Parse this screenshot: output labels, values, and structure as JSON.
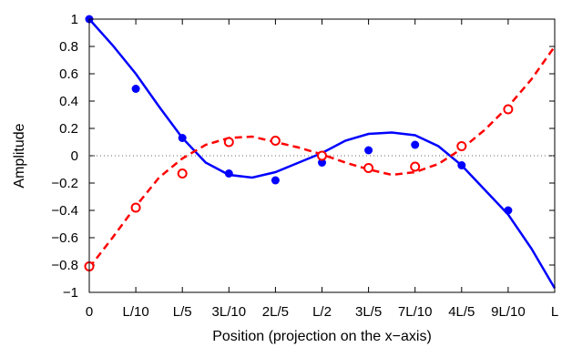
{
  "chart_data": {
    "type": "line",
    "xlabel": "Position (projection on the x−axis)",
    "ylabel": "Amplitude",
    "xlim": [
      0,
      1
    ],
    "ylim": [
      -1,
      1
    ],
    "x_ticks": [
      {
        "value": 0.0,
        "label": "0"
      },
      {
        "value": 0.1,
        "label": "L/10"
      },
      {
        "value": 0.2,
        "label": "L/5"
      },
      {
        "value": 0.3,
        "label": "3L/10"
      },
      {
        "value": 0.4,
        "label": "2L/5"
      },
      {
        "value": 0.5,
        "label": "L/2"
      },
      {
        "value": 0.6,
        "label": "3L/5"
      },
      {
        "value": 0.7,
        "label": "7L/10"
      },
      {
        "value": 0.8,
        "label": "4L/5"
      },
      {
        "value": 0.9,
        "label": "9L/10"
      },
      {
        "value": 1.0,
        "label": "L"
      }
    ],
    "y_ticks": [
      {
        "value": 1.0,
        "label": "1"
      },
      {
        "value": 0.8,
        "label": "0.8"
      },
      {
        "value": 0.6,
        "label": "0.6"
      },
      {
        "value": 0.4,
        "label": "0.4"
      },
      {
        "value": 0.2,
        "label": "0.2"
      },
      {
        "value": 0.0,
        "label": "0"
      },
      {
        "value": -0.2,
        "label": "−0.2"
      },
      {
        "value": -0.4,
        "label": "−0.4"
      },
      {
        "value": -0.6,
        "label": "−0.6"
      },
      {
        "value": -0.8,
        "label": "−0.8"
      },
      {
        "value": -1.0,
        "label": "−1"
      }
    ],
    "zero_line": true,
    "grid": false,
    "legend": "none",
    "series": [
      {
        "style": "solid",
        "color": "#0000ff",
        "curve": [
          [
            0.0,
            1.0
          ],
          [
            0.05,
            0.81
          ],
          [
            0.1,
            0.6
          ],
          [
            0.15,
            0.36
          ],
          [
            0.2,
            0.13
          ],
          [
            0.25,
            -0.05
          ],
          [
            0.3,
            -0.14
          ],
          [
            0.35,
            -0.16
          ],
          [
            0.4,
            -0.12
          ],
          [
            0.45,
            -0.05
          ],
          [
            0.5,
            0.02
          ],
          [
            0.55,
            0.11
          ],
          [
            0.6,
            0.16
          ],
          [
            0.65,
            0.17
          ],
          [
            0.7,
            0.15
          ],
          [
            0.75,
            0.07
          ],
          [
            0.8,
            -0.07
          ],
          [
            0.85,
            -0.25
          ],
          [
            0.9,
            -0.43
          ],
          [
            0.95,
            -0.68
          ],
          [
            1.0,
            -0.97
          ]
        ],
        "points": [
          [
            0.0,
            1.0
          ],
          [
            0.1,
            0.49
          ],
          [
            0.2,
            0.13
          ],
          [
            0.3,
            -0.13
          ],
          [
            0.4,
            -0.18
          ],
          [
            0.5,
            -0.05
          ],
          [
            0.6,
            0.04
          ],
          [
            0.7,
            0.08
          ],
          [
            0.8,
            -0.07
          ],
          [
            0.9,
            -0.4
          ]
        ],
        "marker": "filled-circle"
      },
      {
        "style": "dashed",
        "color": "#ff0000",
        "curve": [
          [
            0.0,
            -0.82
          ],
          [
            0.05,
            -0.6
          ],
          [
            0.1,
            -0.37
          ],
          [
            0.15,
            -0.16
          ],
          [
            0.2,
            -0.02
          ],
          [
            0.25,
            0.08
          ],
          [
            0.3,
            0.13
          ],
          [
            0.35,
            0.14
          ],
          [
            0.4,
            0.1
          ],
          [
            0.45,
            0.06
          ],
          [
            0.5,
            0.01
          ],
          [
            0.55,
            -0.05
          ],
          [
            0.6,
            -0.1
          ],
          [
            0.65,
            -0.14
          ],
          [
            0.7,
            -0.12
          ],
          [
            0.75,
            -0.06
          ],
          [
            0.8,
            0.05
          ],
          [
            0.85,
            0.19
          ],
          [
            0.9,
            0.36
          ],
          [
            0.95,
            0.56
          ],
          [
            1.0,
            0.8
          ]
        ],
        "points": [
          [
            0.0,
            -0.81
          ],
          [
            0.1,
            -0.38
          ],
          [
            0.2,
            -0.13
          ],
          [
            0.3,
            0.1
          ],
          [
            0.4,
            0.11
          ],
          [
            0.5,
            0.0
          ],
          [
            0.6,
            -0.09
          ],
          [
            0.7,
            -0.08
          ],
          [
            0.8,
            0.07
          ],
          [
            0.9,
            0.34
          ]
        ],
        "marker": "open-circle"
      }
    ]
  }
}
